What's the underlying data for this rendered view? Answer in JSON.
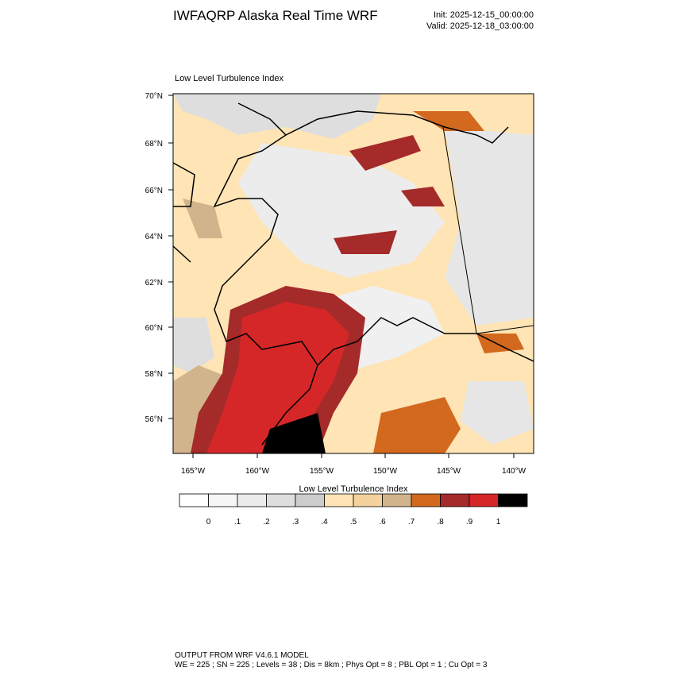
{
  "header": {
    "title": "IWFAQRP Alaska Real Time WRF",
    "init": "Init: 2025-12-15_00:00:00",
    "valid": "Valid: 2025-12-18_03:00:00"
  },
  "map": {
    "field_label": "Low Level Turbulence Index",
    "lat_labels": [
      "70°N",
      "68°N",
      "66°N",
      "64°N",
      "62°N",
      "60°N",
      "58°N",
      "56°N"
    ],
    "lon_labels": [
      "165°W",
      "160°W",
      "155°W",
      "150°W",
      "145°W",
      "140°W"
    ]
  },
  "colorbar": {
    "title": "Low Level Turbulence Index",
    "labels": [
      "0",
      ".1",
      ".2",
      ".3",
      ".4",
      ".5",
      ".6",
      ".7",
      ".8",
      ".9",
      "1"
    ],
    "colors": [
      "#ffffff",
      "#f6f6f6",
      "#ececec",
      "#dedede",
      "#cdcdcd",
      "#ffe4b5",
      "#f5d29c",
      "#d2b48c",
      "#d2691e",
      "#a52a2a",
      "#d62728",
      "#000000"
    ]
  },
  "footer": {
    "line1": "OUTPUT FROM WRF V4.6.1 MODEL",
    "line2": "WE = 225 ; SN = 225 ; Levels = 38 ; Dis = 8km ; Phys Opt = 8 ; PBL Opt = 1 ; Cu Opt = 3"
  }
}
